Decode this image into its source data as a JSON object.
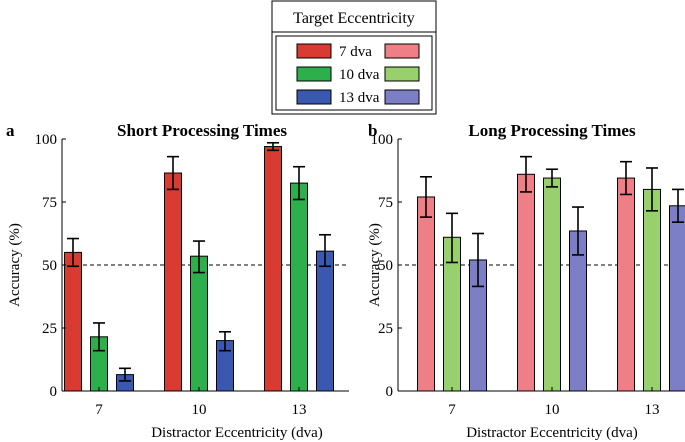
{
  "legend": {
    "title": "Target Eccentricity",
    "entries": [
      {
        "label": "7 dva",
        "dark": "#d93a31",
        "light": "#ef7f86"
      },
      {
        "label": "10 dva",
        "dark": "#2db04b",
        "light": "#97d06c"
      },
      {
        "label": "13 dva",
        "dark": "#3b58b1",
        "light": "#7d7fc6"
      }
    ]
  },
  "chart_data": [
    {
      "type": "bar",
      "panel_letter": "a",
      "title": "Short Processing Times",
      "xlabel": "Distractor Eccentricity (dva)",
      "ylabel": "Accuracy (%)",
      "ylim": [
        0,
        100
      ],
      "yticks": [
        0,
        25,
        50,
        75,
        100
      ],
      "categories": [
        "7",
        "10",
        "13"
      ],
      "chance_level": 50,
      "series": [
        {
          "name": "7 dva",
          "color": "#d93a31",
          "values": [
            55,
            86.5,
            97
          ],
          "err_low": [
            49.5,
            80,
            95.5
          ],
          "err_high": [
            60.5,
            93,
            98.5
          ]
        },
        {
          "name": "10 dva",
          "color": "#2db04b",
          "values": [
            21.5,
            53.5,
            82.5
          ],
          "err_low": [
            16,
            47,
            76
          ],
          "err_high": [
            27,
            59.5,
            89
          ]
        },
        {
          "name": "13 dva",
          "color": "#3b58b1",
          "values": [
            6.5,
            20,
            55.5
          ],
          "err_low": [
            4,
            16,
            49.5
          ],
          "err_high": [
            9,
            23.5,
            62
          ]
        }
      ]
    },
    {
      "type": "bar",
      "panel_letter": "b",
      "title": "Long Processing Times",
      "xlabel": "Distractor Eccentricity (dva)",
      "ylabel": "Accuracy (%)",
      "ylim": [
        0,
        100
      ],
      "yticks": [
        0,
        25,
        50,
        75,
        100
      ],
      "categories": [
        "7",
        "10",
        "13"
      ],
      "chance_level": 50,
      "series": [
        {
          "name": "7 dva",
          "color": "#ef7f86",
          "values": [
            77,
            86,
            84.5
          ],
          "err_low": [
            69,
            79,
            78
          ],
          "err_high": [
            85,
            93,
            91
          ]
        },
        {
          "name": "10 dva",
          "color": "#97d06c",
          "values": [
            61,
            84.5,
            80
          ],
          "err_low": [
            51,
            81,
            71.5
          ],
          "err_high": [
            70.5,
            88,
            88.5
          ]
        },
        {
          "name": "13 dva",
          "color": "#7d7fc6",
          "values": [
            52,
            63.5,
            73.5
          ],
          "err_low": [
            41.5,
            54,
            67
          ],
          "err_high": [
            62.5,
            73,
            80
          ]
        }
      ]
    }
  ]
}
